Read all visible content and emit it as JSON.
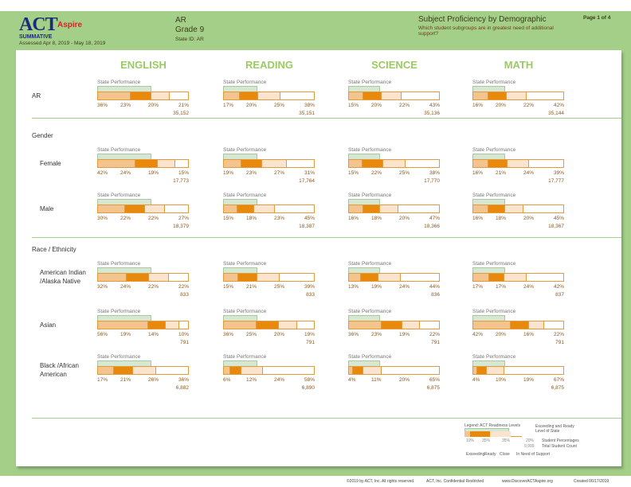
{
  "header": {
    "logo": "ACT",
    "logo_sub": "Aspire",
    "type": "SUMMATIVE",
    "assessed": "Assessed Apr 8, 2019 - May 18, 2019",
    "state": "AR",
    "grade": "Grade 9",
    "state_id": "State ID: AR",
    "report_title": "Subject Proficiency by Demographic",
    "report_question": "Which student subgroups are in greatest need of additional support?",
    "page": "Page 1 of 4"
  },
  "subjects": [
    "ENGLISH",
    "READING",
    "SCIENCE",
    "MATH"
  ],
  "state_performance_label": "State Performance",
  "state_ready_pct": [
    59,
    37,
    35,
    36
  ],
  "colors": {
    "exceeding": "#f4c48f",
    "ready": "#e8890c",
    "close": "#fbe4cd",
    "need_support": "#ffffff",
    "state": "#d6e8d2",
    "page_green": "#a3cf88"
  },
  "sections": [
    {
      "title": "",
      "rows": [
        {
          "label": "AR",
          "cells": [
            [
              36,
              23,
              20,
              21,
              "35,152"
            ],
            [
              17,
              20,
              25,
              38,
              "35,151"
            ],
            [
              15,
              20,
              22,
              43,
              "35,136"
            ],
            [
              16,
              20,
              22,
              42,
              "35,144"
            ]
          ]
        }
      ]
    },
    {
      "title": "Gender",
      "rows": [
        {
          "label": "Female",
          "cells": [
            [
              42,
              24,
              19,
              15,
              "17,773"
            ],
            [
              19,
              23,
              27,
              31,
              "17,764"
            ],
            [
              15,
              22,
              25,
              38,
              "17,770"
            ],
            [
              16,
              21,
              24,
              39,
              "17,777"
            ]
          ]
        },
        {
          "label": "Male",
          "cells": [
            [
              30,
              22,
              22,
              27,
              "18,379"
            ],
            [
              15,
              18,
              23,
              45,
              "18,387"
            ],
            [
              16,
              18,
              20,
              47,
              "18,366"
            ],
            [
              16,
              18,
              20,
              45,
              "18,367"
            ]
          ]
        }
      ]
    },
    {
      "title": "Race / Ethnicity",
      "rows": [
        {
          "label": "American Indian /Alaska Native",
          "cells": [
            [
              32,
              24,
              22,
              22,
              "833"
            ],
            [
              15,
              21,
              25,
              39,
              "833"
            ],
            [
              13,
              19,
              24,
              44,
              "836"
            ],
            [
              17,
              17,
              24,
              42,
              "837"
            ]
          ]
        },
        {
          "label": "Asian",
          "cells": [
            [
              56,
              19,
              14,
              10,
              "791"
            ],
            [
              36,
              25,
              20,
              19,
              "791"
            ],
            [
              36,
              23,
              19,
              22,
              "791"
            ],
            [
              42,
              20,
              16,
              22,
              "791"
            ]
          ]
        },
        {
          "label": "Black /African American",
          "cells": [
            [
              17,
              21,
              26,
              36,
              "6,882"
            ],
            [
              6,
              12,
              24,
              58,
              "6,890"
            ],
            [
              4,
              11,
              20,
              65,
              "6,875"
            ],
            [
              4,
              10,
              19,
              67,
              "6,875"
            ]
          ]
        }
      ]
    }
  ],
  "legend": {
    "title": "Legend: ACT Readiness Levels",
    "state_note": "Exceeding and Ready Level of State",
    "sample": [
      "10%",
      "35%",
      "35%",
      "20%"
    ],
    "count": "9,999",
    "student_pct": "Student Percentages",
    "total_count": "Total Student Count",
    "levels": [
      "Exceeding",
      "Ready",
      "Close",
      "In Need of Support"
    ]
  },
  "footer": [
    "©2019 by ACT, Inc. All rights reserved.",
    "ACT, Inc. Confidential Restricted",
    "www.DiscoverACTAspire.org",
    "Created 06/17/2019"
  ]
}
